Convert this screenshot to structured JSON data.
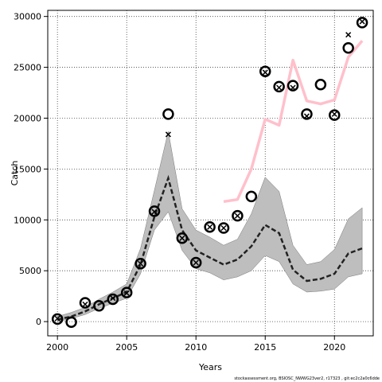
{
  "chart_data": {
    "type": "line",
    "xlabel": "Years",
    "ylabel": "Catch",
    "xlim": [
      1999.3,
      2022.8
    ],
    "ylim": [
      -1400,
      30600
    ],
    "x_ticks": [
      2000,
      2005,
      2010,
      2015,
      2020
    ],
    "y_ticks": [
      0,
      5000,
      10000,
      15000,
      20000,
      25000,
      30000
    ],
    "grid": true,
    "source_note": "stockassessment.org, BSIOSC_NWWG23ver2, r17323 , git:ec2c2a0c6dde",
    "series": [
      {
        "style": "circles",
        "x": [
          2000,
          2001,
          2002,
          2003,
          2004,
          2005,
          2006,
          2007,
          2008,
          2009,
          2010,
          2011,
          2012,
          2013,
          2014,
          2015,
          2016,
          2017,
          2018,
          2019,
          2020,
          2021,
          2022
        ],
        "values": [
          250,
          -50,
          1850,
          1550,
          2200,
          2850,
          5700,
          10850,
          20400,
          8200,
          5800,
          9300,
          9200,
          10400,
          12300,
          24600,
          23100,
          23200,
          20400,
          23300,
          20300,
          26900,
          29400
        ]
      },
      {
        "style": "crosses",
        "x": [
          2000,
          2002,
          2004,
          2005,
          2006,
          2007,
          2008,
          2009,
          2010,
          2011,
          2012,
          2013,
          2015,
          2016,
          2017,
          2018,
          2020,
          2021,
          2022
        ],
        "values": [
          300,
          1700,
          2300,
          2800,
          5700,
          10800,
          18400,
          8200,
          5800,
          9300,
          9200,
          10400,
          24500,
          23000,
          23000,
          20200,
          20400,
          28200,
          29500
        ]
      },
      {
        "style": "dashed-median",
        "x": [
          2000,
          2001,
          2002,
          2003,
          2004,
          2005,
          2006,
          2007,
          2008,
          2009,
          2010,
          2011,
          2012,
          2013,
          2014,
          2015,
          2016,
          2017,
          2018,
          2019,
          2020,
          2021,
          2022
        ],
        "values": [
          200,
          500,
          1000,
          1700,
          2300,
          2900,
          5600,
          10300,
          14100,
          9000,
          7000,
          6300,
          5600,
          6100,
          7400,
          9500,
          8700,
          5100,
          4000,
          4200,
          4700,
          6700,
          7200
        ]
      },
      {
        "style": "band",
        "x": [
          2000,
          2001,
          2002,
          2003,
          2004,
          2005,
          2006,
          2007,
          2008,
          2009,
          2010,
          2011,
          2012,
          2013,
          2014,
          2015,
          2016,
          2017,
          2018,
          2019,
          2020,
          2021,
          2022
        ],
        "lower": [
          0,
          300,
          700,
          1300,
          1800,
          2300,
          4700,
          9000,
          10800,
          7000,
          5200,
          4800,
          4100,
          4400,
          5000,
          6500,
          5900,
          3700,
          2900,
          3000,
          3200,
          4400,
          4700
        ],
        "upper": [
          500,
          900,
          1400,
          2200,
          2900,
          3700,
          7200,
          12900,
          18700,
          11100,
          9000,
          8300,
          7500,
          8100,
          10600,
          14200,
          12800,
          7500,
          5600,
          5900,
          7100,
          10100,
          11200
        ]
      },
      {
        "style": "pink-line",
        "x": [
          2012,
          2013,
          2014,
          2015,
          2016,
          2017,
          2018,
          2019,
          2020,
          2021,
          2022
        ],
        "values": [
          11800,
          12000,
          15000,
          19900,
          19300,
          25700,
          21700,
          21400,
          21800,
          26000,
          27600
        ]
      }
    ],
    "colors": {
      "band": "#bebebe",
      "median": "#222222",
      "pink": "#ffc0cb",
      "markers": "#000000",
      "grid": "#444444"
    }
  }
}
